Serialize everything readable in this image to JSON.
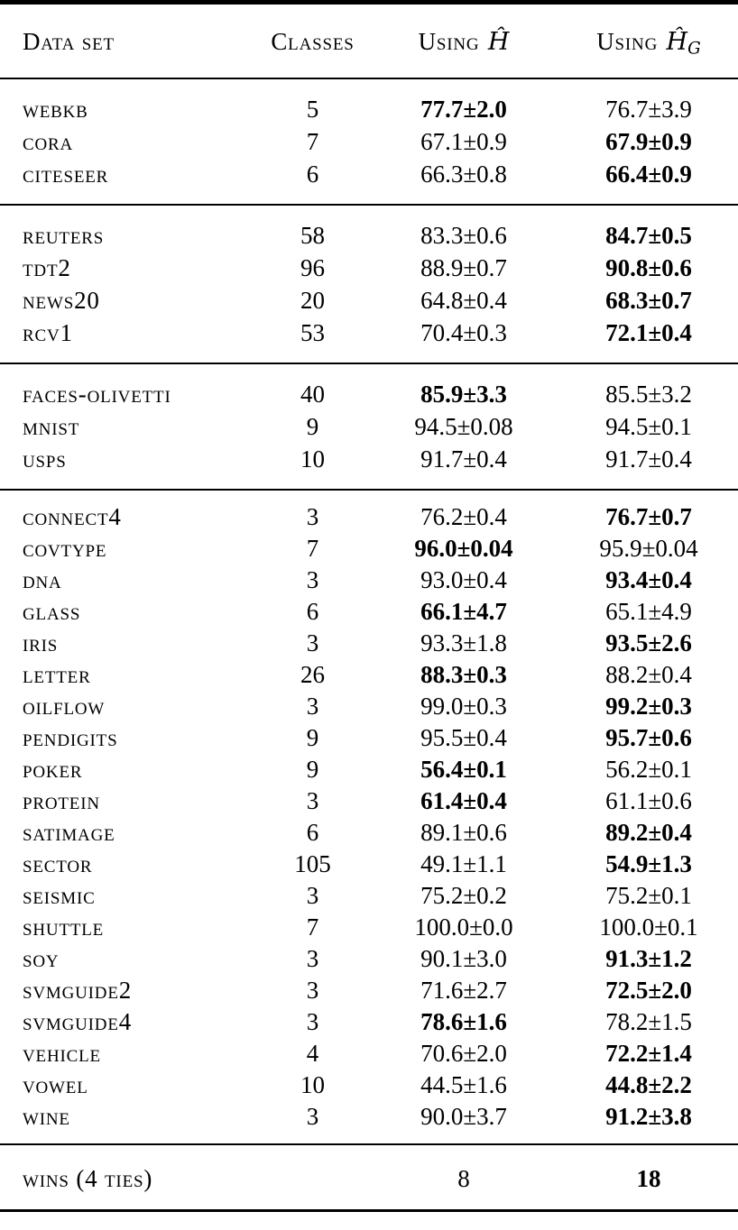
{
  "colors": {
    "text": "#000000",
    "background": "#ffffff",
    "rule": "#000000"
  },
  "table": {
    "headers": {
      "dataset": "Data set",
      "classes": "Classes",
      "using_h": {
        "prefix": "Using",
        "symbol": "Ĥ",
        "subscript": ""
      },
      "using_hg": {
        "prefix": "Using",
        "symbol": "Ĥ",
        "subscript": "G"
      }
    },
    "sections": [
      {
        "rows": [
          {
            "name": "webkb",
            "classes": "5",
            "h": {
              "value": "77.7±2.0",
              "bold": true
            },
            "hg": {
              "value": "76.7±3.9",
              "bold": false
            }
          },
          {
            "name": "cora",
            "classes": "7",
            "h": {
              "value": "67.1±0.9",
              "bold": false
            },
            "hg": {
              "value": "67.9±0.9",
              "bold": true
            }
          },
          {
            "name": "citeseer",
            "classes": "6",
            "h": {
              "value": "66.3±0.8",
              "bold": false
            },
            "hg": {
              "value": "66.4±0.9",
              "bold": true
            }
          }
        ]
      },
      {
        "rows": [
          {
            "name": "reuters",
            "classes": "58",
            "h": {
              "value": "83.3±0.6",
              "bold": false
            },
            "hg": {
              "value": "84.7±0.5",
              "bold": true
            }
          },
          {
            "name": "tdt2",
            "classes": "96",
            "h": {
              "value": "88.9±0.7",
              "bold": false
            },
            "hg": {
              "value": "90.8±0.6",
              "bold": true
            }
          },
          {
            "name": "news20",
            "classes": "20",
            "h": {
              "value": "64.8±0.4",
              "bold": false
            },
            "hg": {
              "value": "68.3±0.7",
              "bold": true
            }
          },
          {
            "name": "rcv1",
            "classes": "53",
            "h": {
              "value": "70.4±0.3",
              "bold": false
            },
            "hg": {
              "value": "72.1±0.4",
              "bold": true
            }
          }
        ]
      },
      {
        "rows": [
          {
            "name": "faces-olivetti",
            "classes": "40",
            "h": {
              "value": "85.9±3.3",
              "bold": true
            },
            "hg": {
              "value": "85.5±3.2",
              "bold": false
            }
          },
          {
            "name": "mnist",
            "classes": "9",
            "h": {
              "value": "94.5±0.08",
              "bold": false
            },
            "hg": {
              "value": "94.5±0.1",
              "bold": false
            }
          },
          {
            "name": "usps",
            "classes": "10",
            "h": {
              "value": "91.7±0.4",
              "bold": false
            },
            "hg": {
              "value": "91.7±0.4",
              "bold": false
            }
          }
        ]
      },
      {
        "rows": [
          {
            "name": "connect4",
            "classes": "3",
            "h": {
              "value": "76.2±0.4",
              "bold": false
            },
            "hg": {
              "value": "76.7±0.7",
              "bold": true
            }
          },
          {
            "name": "covtype",
            "classes": "7",
            "h": {
              "value": "96.0±0.04",
              "bold": true
            },
            "hg": {
              "value": "95.9±0.04",
              "bold": false
            }
          },
          {
            "name": "dna",
            "classes": "3",
            "h": {
              "value": "93.0±0.4",
              "bold": false
            },
            "hg": {
              "value": "93.4±0.4",
              "bold": true
            }
          },
          {
            "name": "glass",
            "classes": "6",
            "h": {
              "value": "66.1±4.7",
              "bold": true
            },
            "hg": {
              "value": "65.1±4.9",
              "bold": false
            }
          },
          {
            "name": "iris",
            "classes": "3",
            "h": {
              "value": "93.3±1.8",
              "bold": false
            },
            "hg": {
              "value": "93.5±2.6",
              "bold": true
            }
          },
          {
            "name": "letter",
            "classes": "26",
            "h": {
              "value": "88.3±0.3",
              "bold": true
            },
            "hg": {
              "value": "88.2±0.4",
              "bold": false
            }
          },
          {
            "name": "oilflow",
            "classes": "3",
            "h": {
              "value": "99.0±0.3",
              "bold": false
            },
            "hg": {
              "value": "99.2±0.3",
              "bold": true
            }
          },
          {
            "name": "pendigits",
            "classes": "9",
            "h": {
              "value": "95.5±0.4",
              "bold": false
            },
            "hg": {
              "value": "95.7±0.6",
              "bold": true
            }
          },
          {
            "name": "poker",
            "classes": "9",
            "h": {
              "value": "56.4±0.1",
              "bold": true
            },
            "hg": {
              "value": "56.2±0.1",
              "bold": false
            }
          },
          {
            "name": "protein",
            "classes": "3",
            "h": {
              "value": "61.4±0.4",
              "bold": true
            },
            "hg": {
              "value": "61.1±0.6",
              "bold": false
            }
          },
          {
            "name": "satimage",
            "classes": "6",
            "h": {
              "value": "89.1±0.6",
              "bold": false
            },
            "hg": {
              "value": "89.2±0.4",
              "bold": true
            }
          },
          {
            "name": "sector",
            "classes": "105",
            "h": {
              "value": "49.1±1.1",
              "bold": false
            },
            "hg": {
              "value": "54.9±1.3",
              "bold": true
            }
          },
          {
            "name": "seismic",
            "classes": "3",
            "h": {
              "value": "75.2±0.2",
              "bold": false
            },
            "hg": {
              "value": "75.2±0.1",
              "bold": false
            }
          },
          {
            "name": "shuttle",
            "classes": "7",
            "h": {
              "value": "100.0±0.0",
              "bold": false
            },
            "hg": {
              "value": "100.0±0.1",
              "bold": false
            }
          },
          {
            "name": "soy",
            "classes": "3",
            "h": {
              "value": "90.1±3.0",
              "bold": false
            },
            "hg": {
              "value": "91.3±1.2",
              "bold": true
            }
          },
          {
            "name": "svmguide2",
            "classes": "3",
            "h": {
              "value": "71.6±2.7",
              "bold": false
            },
            "hg": {
              "value": "72.5±2.0",
              "bold": true
            }
          },
          {
            "name": "svmguide4",
            "classes": "3",
            "h": {
              "value": "78.6±1.6",
              "bold": true
            },
            "hg": {
              "value": "78.2±1.5",
              "bold": false
            }
          },
          {
            "name": "vehicle",
            "classes": "4",
            "h": {
              "value": "70.6±2.0",
              "bold": false
            },
            "hg": {
              "value": "72.2±1.4",
              "bold": true
            }
          },
          {
            "name": "vowel",
            "classes": "10",
            "h": {
              "value": "44.5±1.6",
              "bold": false
            },
            "hg": {
              "value": "44.8±2.2",
              "bold": true
            }
          },
          {
            "name": "wine",
            "classes": "3",
            "h": {
              "value": "90.0±3.7",
              "bold": false
            },
            "hg": {
              "value": "91.2±3.8",
              "bold": true
            }
          }
        ]
      }
    ],
    "footer": {
      "label": "wins (4 ties)",
      "h": {
        "value": "8",
        "bold": false
      },
      "hg": {
        "value": "18",
        "bold": true
      }
    }
  }
}
